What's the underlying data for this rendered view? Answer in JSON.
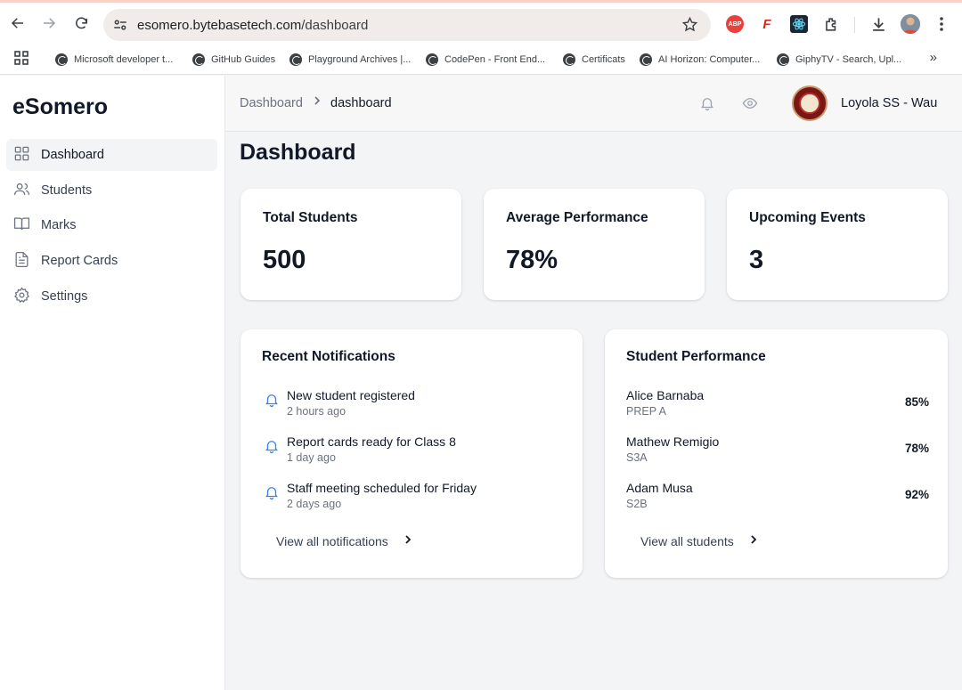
{
  "browser": {
    "url_host": "esomero.bytebasetech.com",
    "url_path": "/dashboard",
    "extensions": {
      "abp_label": "ABP",
      "f_label": "F"
    },
    "bookmarks": [
      "Microsoft developer t...",
      "GitHub Guides",
      "Playground Archives |...",
      "CodePen - Front End...",
      "Certificats",
      "AI Horizon: Computer...",
      "GiphyTV - Search, Upl..."
    ],
    "more_label": "»"
  },
  "sidebar": {
    "brand": "eSomero",
    "items": [
      {
        "label": "Dashboard",
        "icon": "grid-icon"
      },
      {
        "label": "Students",
        "icon": "users-icon"
      },
      {
        "label": "Marks",
        "icon": "book-icon"
      },
      {
        "label": "Report Cards",
        "icon": "document-icon"
      },
      {
        "label": "Settings",
        "icon": "gear-icon"
      }
    ]
  },
  "topbar": {
    "breadcrumb": [
      "Dashboard",
      "dashboard"
    ],
    "separator": ">",
    "school_name": "Loyola SS - Wau"
  },
  "main": {
    "title": "Dashboard",
    "stats": [
      {
        "label": "Total Students",
        "value": "500"
      },
      {
        "label": "Average Performance",
        "value": "78%"
      },
      {
        "label": "Upcoming Events",
        "value": "3"
      }
    ],
    "notifications": {
      "title": "Recent Notifications",
      "items": [
        {
          "title": "New student registered",
          "time": "2 hours ago"
        },
        {
          "title": "Report cards ready for Class 8",
          "time": "1 day ago"
        },
        {
          "title": "Staff meeting scheduled for Friday",
          "time": "2 days ago"
        }
      ],
      "view_all": "View all notifications"
    },
    "performance": {
      "title": "Student Performance",
      "students": [
        {
          "name": "Alice Barnaba",
          "class": "PREP A",
          "score": "85%"
        },
        {
          "name": "Mathew Remigio",
          "class": "S3A",
          "score": "78%"
        },
        {
          "name": "Adam Musa",
          "class": "S2B",
          "score": "92%"
        }
      ],
      "view_all": "View all students"
    }
  },
  "colors": {
    "accent_blue": "#3b82f6",
    "sidebar_active_bg": "#f3f4f6",
    "page_bg": "#f3f4f6"
  }
}
